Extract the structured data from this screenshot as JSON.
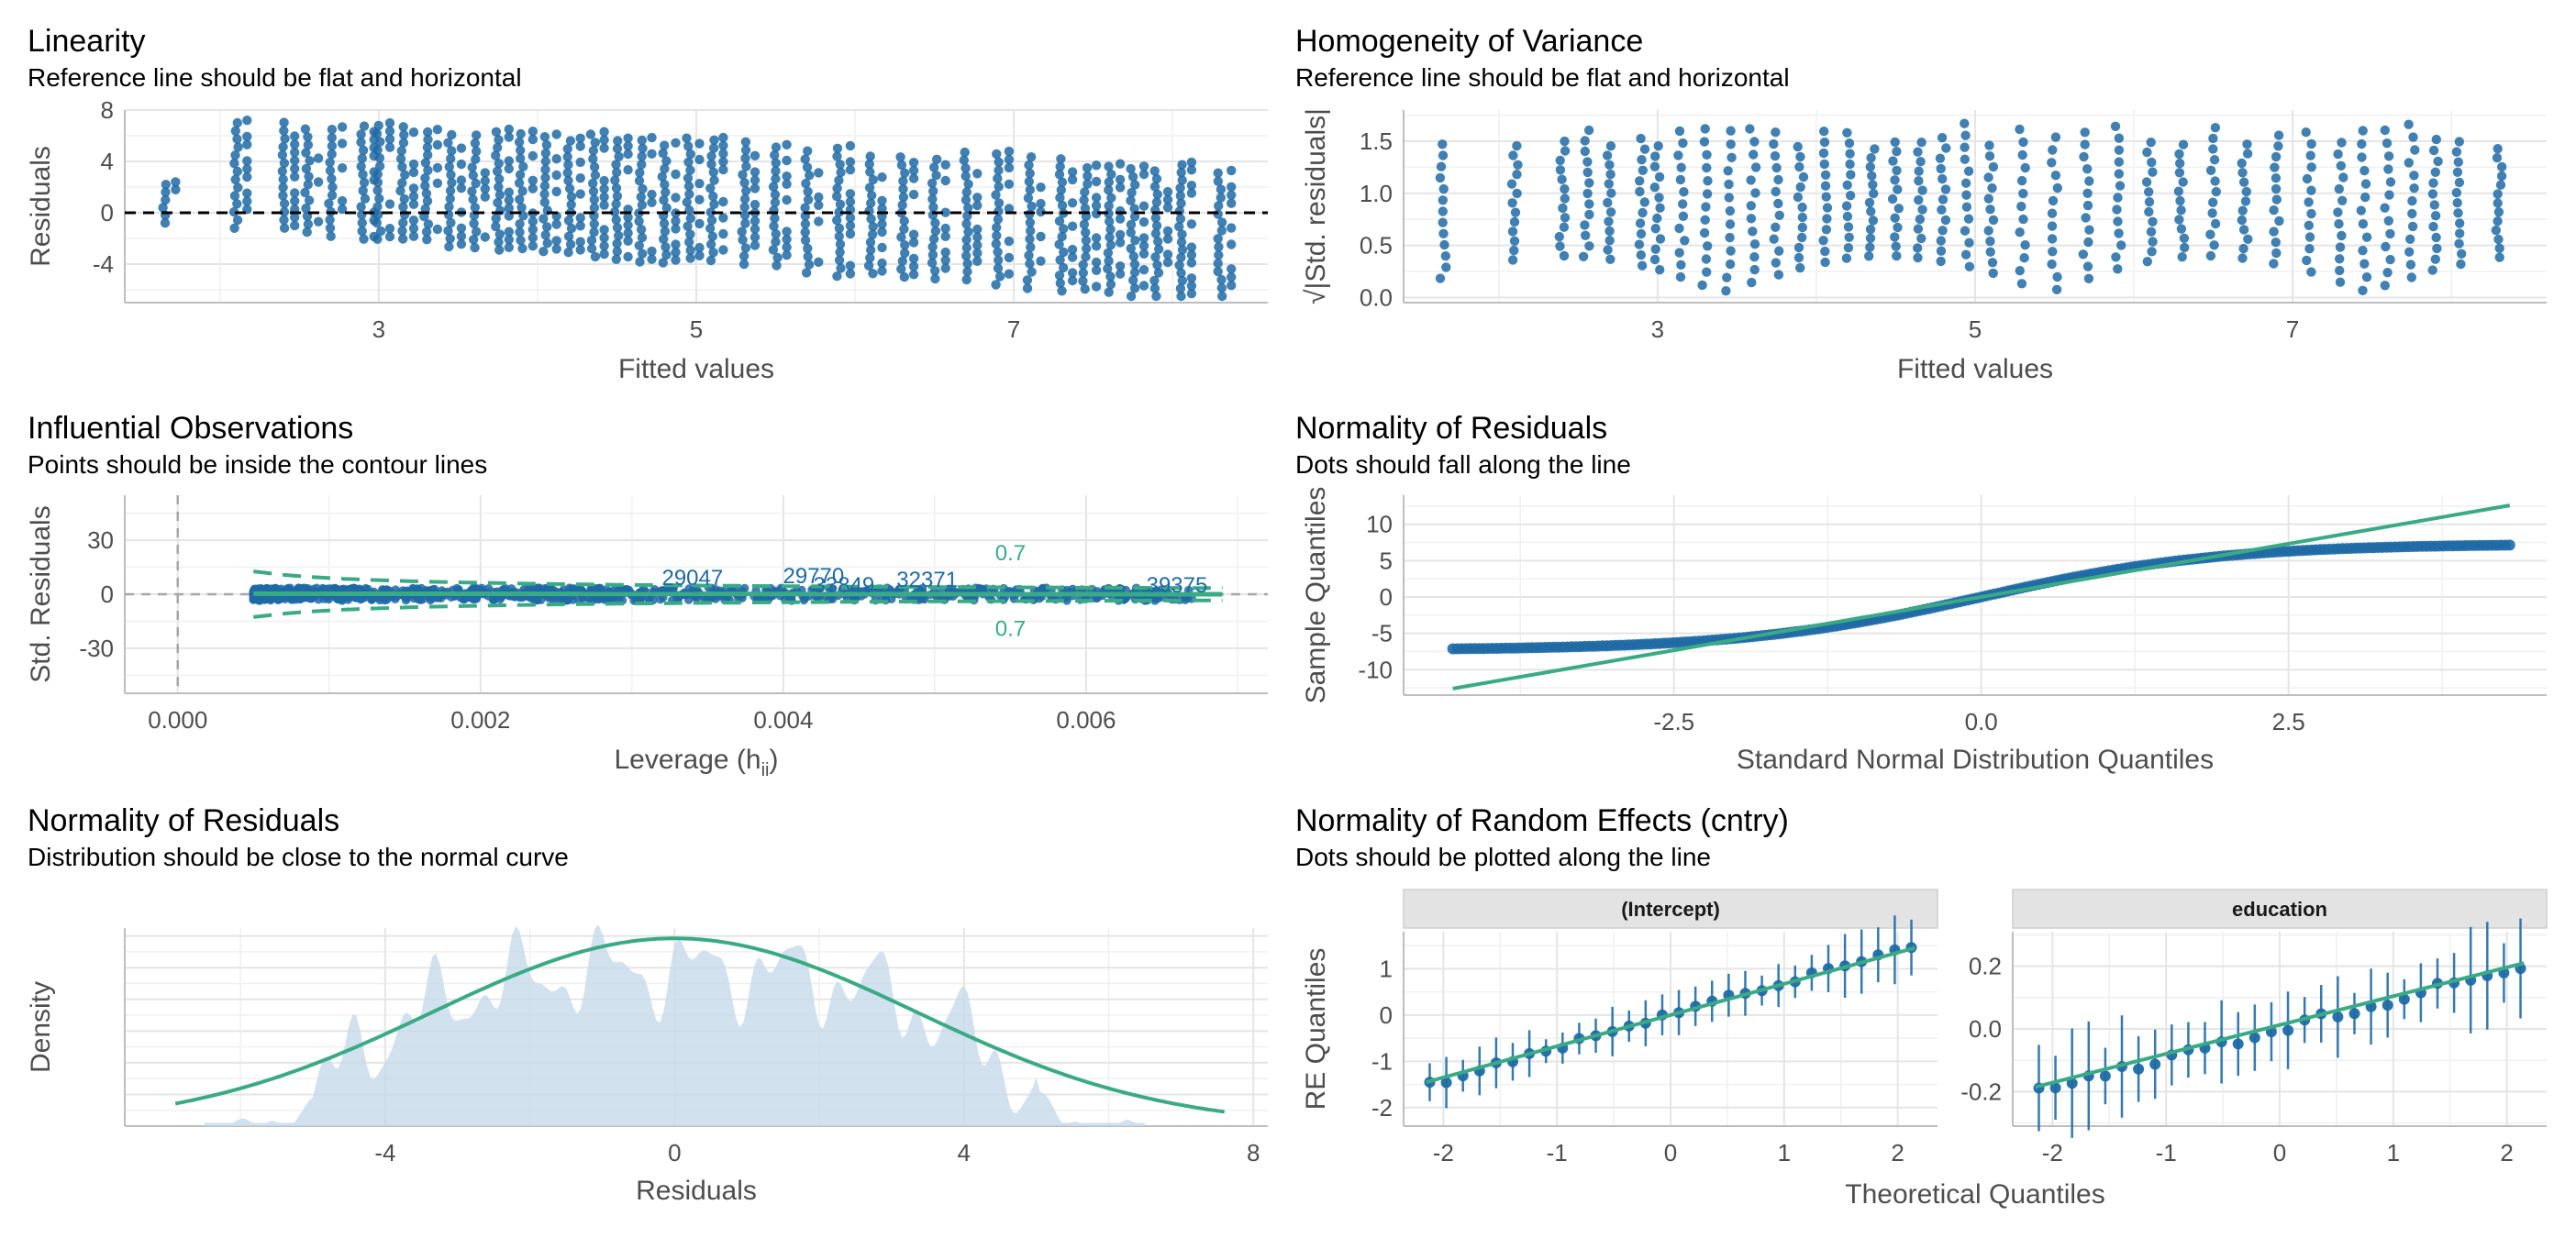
{
  "colors": {
    "point": "#1f6aa5",
    "line": "#3aaa85",
    "grid": "#e5e5e5",
    "density_fill": "#c6d9ea",
    "ref_line": "#000000",
    "strip_bg": "#e3e3e3"
  },
  "chart_data": [
    {
      "id": "linearity",
      "type": "scatter",
      "title": "Linearity",
      "subtitle": "Reference line should be flat and horizontal",
      "xlabel": "Fitted values",
      "ylabel": "Residuals",
      "xlim": [
        1.4,
        8.6
      ],
      "ylim": [
        -7,
        8
      ],
      "xticks": [
        3,
        5,
        7
      ],
      "yticks": [
        -4,
        0,
        4,
        8
      ],
      "columns_x": [
        1.65,
        2.1,
        2.4,
        2.55,
        2.7,
        2.9,
        3.0,
        3.15,
        3.3,
        3.45,
        3.6,
        3.75,
        3.9,
        4.05,
        4.2,
        4.35,
        4.5,
        4.65,
        4.8,
        4.95,
        5.1,
        5.3,
        5.5,
        5.7,
        5.9,
        6.1,
        6.3,
        6.5,
        6.7,
        6.9,
        7.1,
        7.3,
        7.45,
        7.6,
        7.75,
        7.9,
        8.05,
        8.3
      ],
      "reference_y": 0,
      "point_shape": "band from about +7 at low fitted to about -6 at high fitted"
    },
    {
      "id": "homogeneity",
      "type": "scatter",
      "title": "Homogeneity of Variance",
      "subtitle": "Reference line should be flat and horizontal",
      "xlabel": "Fitted values",
      "ylabel": "√|Std. residuals|",
      "xlim": [
        1.4,
        8.6
      ],
      "ylim": [
        -0.05,
        1.8
      ],
      "xticks": [
        3,
        5,
        7
      ],
      "yticks": [
        0.0,
        0.5,
        1.0,
        1.5
      ],
      "columns_x": [
        1.65,
        2.1,
        2.4,
        2.55,
        2.7,
        2.9,
        3.0,
        3.15,
        3.3,
        3.45,
        3.6,
        3.75,
        3.9,
        4.05,
        4.2,
        4.35,
        4.5,
        4.65,
        4.8,
        4.95,
        5.1,
        5.3,
        5.5,
        5.7,
        5.9,
        6.1,
        6.3,
        6.5,
        6.7,
        6.9,
        7.1,
        7.3,
        7.45,
        7.6,
        7.75,
        7.9,
        8.05,
        8.3
      ]
    },
    {
      "id": "influential",
      "type": "scatter",
      "title": "Influential Observations",
      "subtitle": "Points should be inside the contour lines",
      "xlabel": "Leverage (h",
      "xlabel_sub": "ii",
      "xlabel_end": ")",
      "ylabel": "Std. Residuals",
      "xlim": [
        -0.00035,
        0.0072
      ],
      "ylim": [
        -55,
        55
      ],
      "xticks": [
        0.0,
        0.002,
        0.004,
        0.006
      ],
      "xtick_labels": [
        "0.000",
        "0.002",
        "0.004",
        "0.006"
      ],
      "yticks": [
        -30,
        0,
        30
      ],
      "contour_label": "0.7",
      "labeled_points": [
        {
          "label": "29047",
          "x": 0.0034,
          "y": 2
        },
        {
          "label": "29770",
          "x": 0.0042,
          "y": 3
        },
        {
          "label": "33849",
          "x": 0.0044,
          "y": -2
        },
        {
          "label": "32371",
          "x": 0.00495,
          "y": 1
        },
        {
          "label": "39375",
          "x": 0.0066,
          "y": -2
        }
      ]
    },
    {
      "id": "qq",
      "type": "scatter",
      "title": "Normality of Residuals",
      "subtitle": "Dots should fall along the line",
      "xlabel": "Standard Normal Distribution Quantiles",
      "ylabel": "Sample Quantiles",
      "xlim": [
        -4.7,
        4.6
      ],
      "ylim": [
        -13.5,
        14
      ],
      "xticks": [
        -2.5,
        0.0,
        2.5
      ],
      "xtick_labels": [
        "-2.5",
        "0.0",
        "2.5"
      ],
      "yticks": [
        -10,
        -5,
        0,
        5,
        10
      ],
      "line": [
        [
          -4.3,
          -12.6
        ],
        [
          4.3,
          12.6
        ]
      ]
    },
    {
      "id": "density",
      "type": "area",
      "title": "Normality of Residuals",
      "subtitle": "Distribution should be close to the normal curve",
      "xlabel": "Residuals",
      "ylabel": "Density",
      "xlim": [
        -7.6,
        8.2
      ],
      "ylim": [
        0,
        0.125
      ],
      "xticks": [
        -4,
        0,
        4,
        8
      ],
      "normal_sd": 3.35
    },
    {
      "id": "random_effects",
      "type": "scatter",
      "title": "Normality of Random Effects (cntry)",
      "subtitle": "Dots should be plotted along the line",
      "xlabel": "Theoretical Quantiles",
      "ylabel": "RE Quantiles",
      "facets": [
        {
          "name": "(Intercept)",
          "ylim": [
            -2.4,
            1.8
          ],
          "yticks": [
            -2,
            -1,
            0,
            1
          ]
        },
        {
          "name": "education",
          "ylim": [
            -0.31,
            0.31
          ],
          "yticks": [
            -0.2,
            0.0,
            0.2
          ],
          "ytick_labels": [
            "-0.2",
            "0.0",
            "0.2"
          ]
        }
      ],
      "xlim": [
        -2.35,
        2.35
      ],
      "xticks": [
        -2,
        -1,
        0,
        1,
        2
      ]
    }
  ]
}
